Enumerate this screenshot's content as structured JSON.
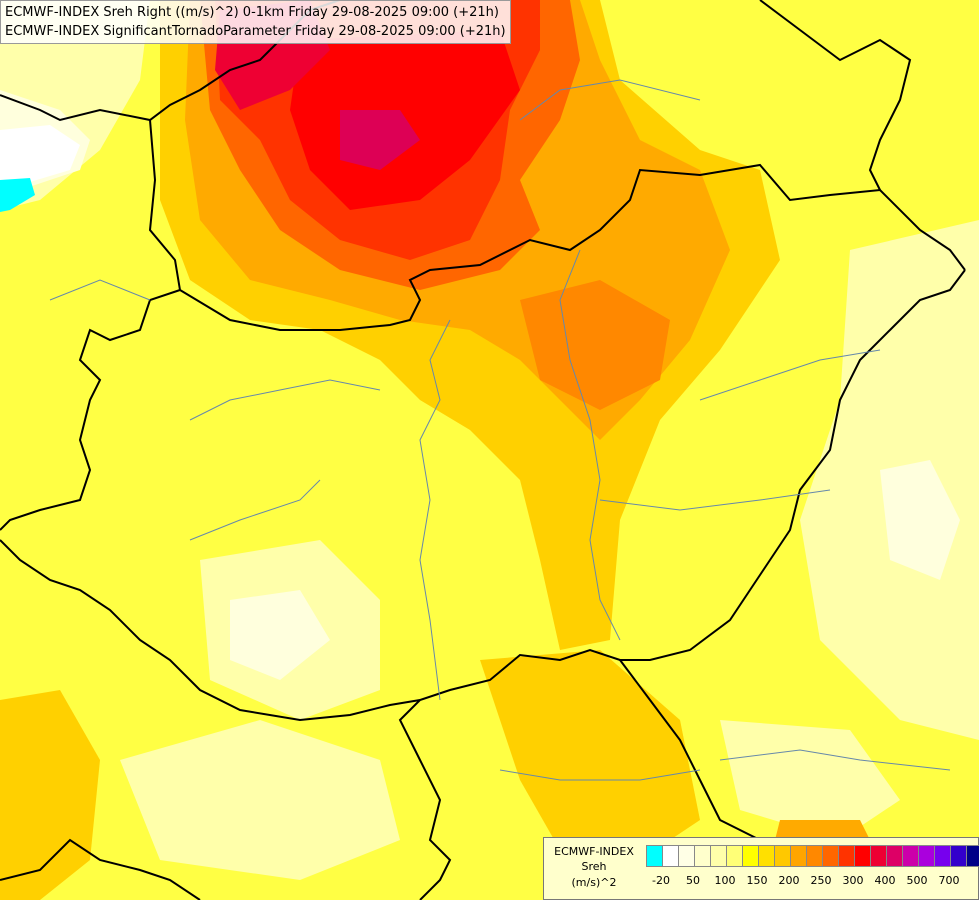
{
  "title_lines": [
    "ECMWF-INDEX Sreh Right ((m/s)^2) 0-1km Friday 29-08-2025 09:00 (+21h)",
    "ECMWF-INDEX SignificantTornadoParameter Friday 29-08-2025 09:00 (+21h)"
  ],
  "legend": {
    "line1": "ECMWF-INDEX",
    "line2": "Sreh",
    "line3": "(m/s)^2",
    "ticks": [
      "-20",
      "50",
      "100",
      "150",
      "200",
      "250",
      "300",
      "400",
      "500",
      "700"
    ],
    "colors": [
      "#00ffff",
      "#ffffff",
      "#ffffe6",
      "#ffffcc",
      "#ffffaa",
      "#ffff77",
      "#ffff00",
      "#ffe000",
      "#ffc800",
      "#ffa500",
      "#ff8800",
      "#ff6600",
      "#ff3300",
      "#ff0000",
      "#ee0033",
      "#dd0066",
      "#cc00aa",
      "#aa00dd",
      "#7700ee",
      "#3300cc",
      "#000088"
    ]
  }
}
